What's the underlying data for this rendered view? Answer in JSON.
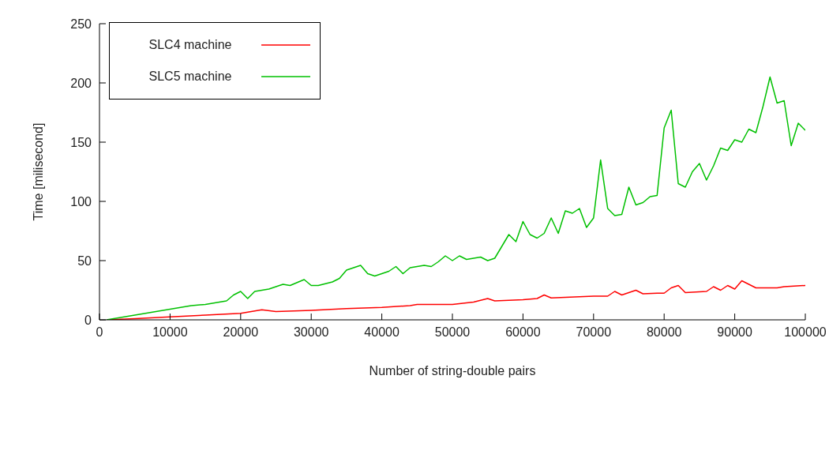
{
  "chart_data": {
    "type": "line",
    "xlabel": "Number of string-double pairs",
    "ylabel": "Time [milisecond]",
    "xlim": [
      0,
      100000
    ],
    "xticks": [
      0,
      10000,
      20000,
      30000,
      40000,
      50000,
      60000,
      70000,
      80000,
      90000,
      100000
    ],
    "ylim": [
      0,
      250
    ],
    "yticks": [
      0,
      50,
      100,
      150,
      200,
      250
    ],
    "legend": "top left",
    "marker": "none",
    "line_style": "solid",
    "series": [
      {
        "name": "SLC4 machine",
        "color": "#ff0000",
        "x": [
          1000,
          5000,
          10000,
          15000,
          20000,
          23000,
          25000,
          30000,
          35000,
          40000,
          44000,
          45000,
          50000,
          53000,
          55000,
          56000,
          60000,
          62000,
          63000,
          64000,
          70000,
          72000,
          73000,
          74000,
          76000,
          77000,
          79000,
          80000,
          81000,
          82000,
          83000,
          86000,
          87000,
          88000,
          89000,
          90000,
          91000,
          93000,
          96000,
          97000,
          100000
        ],
        "values": [
          0,
          1,
          2.5,
          4,
          5.5,
          8.5,
          7,
          8,
          9.5,
          10.5,
          12,
          13,
          13,
          15,
          18,
          16,
          17,
          18,
          21,
          18.5,
          20,
          20,
          24,
          21,
          25,
          22,
          22.5,
          22.5,
          27,
          29,
          23,
          24,
          28,
          25,
          29,
          26,
          33,
          27,
          27,
          28,
          29
        ]
      },
      {
        "name": "SLC5 machine",
        "color": "#00c000",
        "x": [
          1000,
          5000,
          10000,
          13000,
          15000,
          18000,
          19000,
          20000,
          21000,
          22000,
          24000,
          26000,
          27000,
          29000,
          30000,
          31000,
          33000,
          34000,
          35000,
          37000,
          38000,
          39000,
          41000,
          42000,
          43000,
          44000,
          46000,
          47000,
          48000,
          49000,
          50000,
          51000,
          52000,
          54000,
          55000,
          56000,
          58000,
          59000,
          60000,
          61000,
          62000,
          63000,
          64000,
          65000,
          66000,
          67000,
          68000,
          69000,
          70000,
          71000,
          72000,
          73000,
          74000,
          75000,
          76000,
          77000,
          78000,
          79000,
          80000,
          81000,
          82000,
          83000,
          84000,
          85000,
          86000,
          87000,
          88000,
          89000,
          90000,
          91000,
          92000,
          93000,
          94000,
          95000,
          96000,
          97000,
          98000,
          99000,
          100000
        ],
        "values": [
          0,
          4,
          9,
          12,
          13,
          16,
          21,
          24,
          18,
          24,
          26,
          30,
          29,
          34,
          29,
          29,
          32,
          35,
          42,
          46,
          39,
          37,
          41,
          45,
          39,
          44,
          46,
          45,
          49,
          54,
          50,
          54,
          51,
          53,
          50,
          52,
          72,
          66,
          83,
          72,
          69,
          73,
          86,
          73,
          92,
          90,
          94,
          78,
          86,
          135,
          94,
          88,
          89,
          112,
          97,
          99,
          104,
          105,
          162,
          177,
          115,
          112,
          125,
          132,
          118,
          130,
          145,
          143,
          152,
          150,
          161,
          158,
          180,
          205,
          183,
          185,
          147,
          166,
          160
        ]
      }
    ]
  }
}
